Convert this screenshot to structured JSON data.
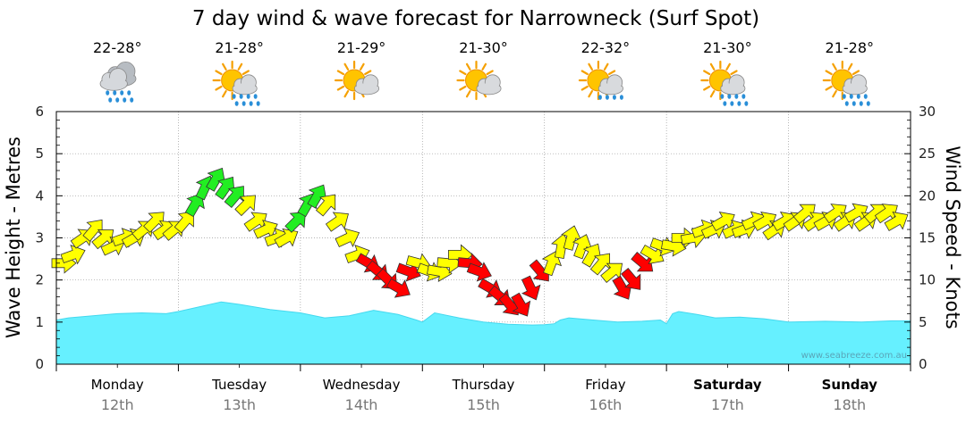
{
  "chart_data": {
    "type": "line",
    "title": "7 day wind & wave forecast for Narrowneck (Surf Spot)",
    "ylabel_left": "Wave Height - Metres",
    "ylabel_right": "Wind Speed - Knots",
    "ylim_left": [
      0,
      6
    ],
    "ylim_right": [
      0,
      30
    ],
    "yticks_left": [
      "0",
      "1",
      "2",
      "3",
      "4",
      "5",
      "6"
    ],
    "yticks_right": [
      "0",
      "5",
      "10",
      "15",
      "20",
      "25",
      "30"
    ],
    "grid": true,
    "watermark": "www.seabreeze.com.au",
    "colors": {
      "wave_fill": "#66f0ff",
      "wave_line": "#44d8ee",
      "light_wind": "#ffff00",
      "moderate_wind": "#22ee22",
      "offshore_wind": "#ff0000",
      "arrow_stroke": "#333333",
      "grid": "#999999"
    },
    "days": [
      {
        "name": "Monday",
        "date": "12th",
        "weekend": false,
        "temp": "22-28°",
        "icon": "rain-cloud-icon"
      },
      {
        "name": "Tuesday",
        "date": "13th",
        "weekend": false,
        "temp": "21-28°",
        "icon": "sun-rain-icon"
      },
      {
        "name": "Wednesday",
        "date": "14th",
        "weekend": false,
        "temp": "21-29°",
        "icon": "sun-cloud-icon"
      },
      {
        "name": "Thursday",
        "date": "15th",
        "weekend": false,
        "temp": "21-30°",
        "icon": "sun-cloud-icon"
      },
      {
        "name": "Friday",
        "date": "16th",
        "weekend": false,
        "temp": "22-32°",
        "icon": "sun-shower-icon"
      },
      {
        "name": "Saturday",
        "date": "17th",
        "weekend": true,
        "temp": "21-30°",
        "icon": "sun-rain-icon"
      },
      {
        "name": "Sunday",
        "date": "18th",
        "weekend": true,
        "temp": "21-28°",
        "icon": "sun-rain-icon"
      }
    ],
    "wave_series": {
      "name": "Wave Height (m)",
      "x_days": [
        0.0,
        0.1,
        0.3,
        0.5,
        0.7,
        0.9,
        1.0,
        1.2,
        1.35,
        1.5,
        1.75,
        2.0,
        2.2,
        2.4,
        2.6,
        2.8,
        2.95,
        3.0,
        3.1,
        3.3,
        3.5,
        3.7,
        3.9,
        4.0,
        4.08,
        4.13,
        4.2,
        4.4,
        4.6,
        4.8,
        4.95,
        5.0,
        5.05,
        5.1,
        5.25,
        5.4,
        5.6,
        5.8,
        6.0,
        6.3,
        6.6,
        6.85
      ],
      "values": [
        1.05,
        1.1,
        1.15,
        1.2,
        1.22,
        1.2,
        1.25,
        1.38,
        1.48,
        1.42,
        1.3,
        1.22,
        1.1,
        1.15,
        1.28,
        1.18,
        1.05,
        1.0,
        1.22,
        1.1,
        1.0,
        0.95,
        0.93,
        0.94,
        0.96,
        1.05,
        1.1,
        1.05,
        1.0,
        1.02,
        1.05,
        0.96,
        1.2,
        1.25,
        1.18,
        1.1,
        1.12,
        1.08,
        1.0,
        1.02,
        1.0,
        1.03
      ]
    },
    "wind_series": {
      "name": "Wind Speed (knots)",
      "x_days": [
        0.0,
        0.08,
        0.16,
        0.25,
        0.33,
        0.41,
        0.5,
        0.58,
        0.66,
        0.75,
        0.83,
        0.91,
        1.0,
        1.08,
        1.16,
        1.25,
        1.33,
        1.41,
        1.5,
        1.58,
        1.66,
        1.75,
        1.83,
        1.91,
        2.0,
        2.08,
        2.16,
        2.25,
        2.33,
        2.41,
        2.5,
        2.58,
        2.66,
        2.75,
        2.83,
        2.91,
        3.0,
        3.08,
        3.16,
        3.25,
        3.33,
        3.41,
        3.5,
        3.58,
        3.66,
        3.75,
        3.83,
        3.91,
        4.0,
        4.08,
        4.16,
        4.25,
        4.33,
        4.41,
        4.5,
        4.58,
        4.66,
        4.75,
        4.83,
        4.91,
        5.0,
        5.08,
        5.16,
        5.25,
        5.33,
        5.41,
        5.5,
        5.58,
        5.66,
        5.75,
        5.83,
        5.91,
        6.0,
        6.08,
        6.16,
        6.25,
        6.33,
        6.41,
        6.5,
        6.58,
        6.66,
        6.75,
        6.83
      ],
      "values": [
        12,
        13,
        15,
        16,
        15,
        14,
        15,
        15,
        16,
        17,
        16,
        16,
        17,
        19,
        21,
        22,
        21,
        20,
        19,
        17,
        16,
        15,
        15,
        17,
        19,
        20,
        19,
        17,
        15,
        13,
        12,
        11,
        10,
        9,
        11,
        12,
        11,
        11,
        12,
        13,
        12,
        11,
        9,
        8,
        7,
        7,
        9,
        11,
        12,
        14,
        15,
        14,
        13,
        12,
        11,
        9,
        10,
        12,
        13,
        14,
        14,
        15,
        15,
        16,
        16,
        17,
        16,
        16,
        17,
        17,
        16,
        17,
        17,
        18,
        17,
        17,
        18,
        17,
        18,
        17,
        18,
        18,
        17
      ],
      "direction_deg": [
        270,
        250,
        235,
        220,
        230,
        245,
        250,
        240,
        230,
        225,
        235,
        230,
        220,
        210,
        205,
        210,
        215,
        220,
        225,
        235,
        245,
        250,
        240,
        225,
        210,
        210,
        220,
        235,
        245,
        250,
        300,
        310,
        315,
        300,
        290,
        285,
        290,
        280,
        275,
        270,
        275,
        290,
        300,
        310,
        320,
        330,
        335,
        320,
        200,
        190,
        195,
        200,
        210,
        220,
        230,
        330,
        320,
        310,
        300,
        290,
        280,
        270,
        260,
        250,
        245,
        240,
        245,
        250,
        245,
        240,
        235,
        240,
        235,
        230,
        235,
        240,
        235,
        235,
        240,
        235,
        230,
        235,
        240
      ],
      "category": [
        "light",
        "light",
        "light",
        "light",
        "light",
        "light",
        "light",
        "light",
        "light",
        "light",
        "light",
        "light",
        "light",
        "moderate",
        "moderate",
        "moderate",
        "moderate",
        "moderate",
        "light",
        "light",
        "light",
        "light",
        "light",
        "moderate",
        "moderate",
        "moderate",
        "light",
        "light",
        "light",
        "light",
        "offshore",
        "offshore",
        "offshore",
        "offshore",
        "offshore",
        "light",
        "light",
        "light",
        "light",
        "light",
        "offshore",
        "offshore",
        "offshore",
        "offshore",
        "offshore",
        "offshore",
        "offshore",
        "offshore",
        "light",
        "light",
        "light",
        "light",
        "light",
        "light",
        "light",
        "offshore",
        "offshore",
        "offshore",
        "light",
        "light",
        "light",
        "light",
        "light",
        "light",
        "light",
        "light",
        "light",
        "light",
        "light",
        "light",
        "light",
        "light",
        "light",
        "light",
        "light",
        "light",
        "light",
        "light",
        "light",
        "light",
        "light",
        "light",
        "light"
      ]
    }
  }
}
